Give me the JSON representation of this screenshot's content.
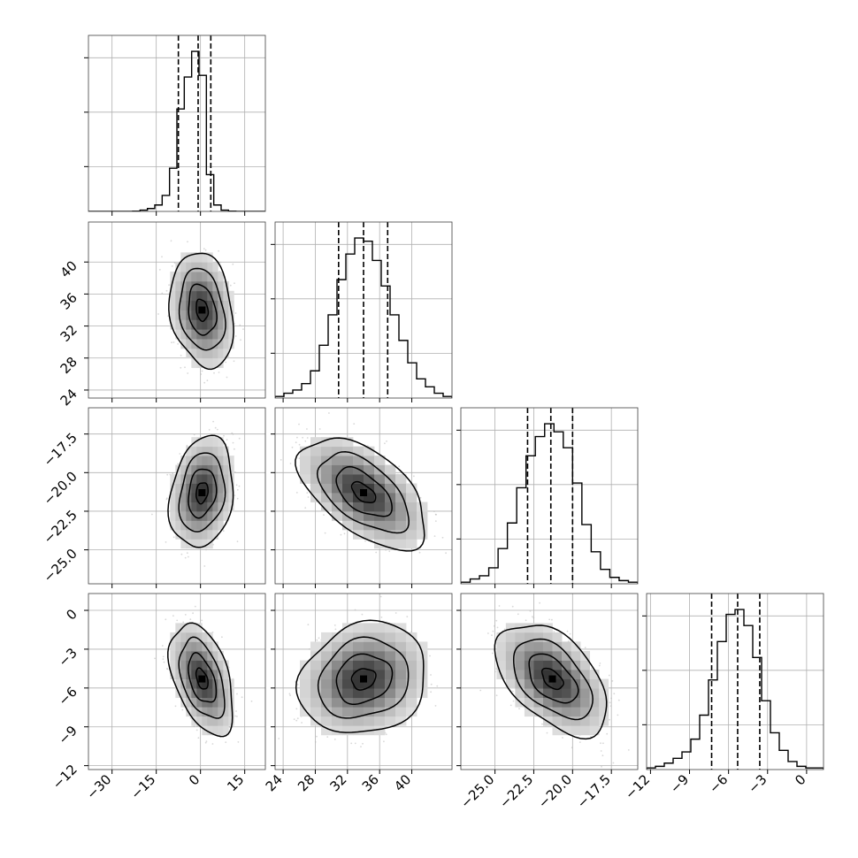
{
  "chart_data": {
    "type": "corner",
    "parameters": [
      {
        "range": [
          -38,
          22
        ],
        "ticks": [
          -30,
          -15,
          0,
          15
        ],
        "tick_labels": [
          "−30",
          "−15",
          "0",
          "15"
        ],
        "hist": [
          0,
          0,
          0,
          0,
          0,
          0,
          0.002,
          0.008,
          0.018,
          0.04,
          0.1,
          0.27,
          0.64,
          0.84,
          1.0,
          0.85,
          0.23,
          0.04,
          0.008,
          0.002,
          0,
          0,
          0,
          0
        ],
        "quantiles": [
          -7.5,
          -0.8,
          3.5
        ]
      },
      {
        "range": [
          23,
          45
        ],
        "ticks": [
          24,
          28,
          32,
          36,
          40
        ],
        "tick_labels": [
          "24",
          "28",
          "32",
          "36",
          "40"
        ],
        "hist": [
          0.01,
          0.03,
          0.05,
          0.09,
          0.17,
          0.33,
          0.52,
          0.74,
          0.9,
          1.0,
          0.98,
          0.86,
          0.7,
          0.52,
          0.36,
          0.22,
          0.12,
          0.07,
          0.03,
          0.01
        ],
        "quantiles": [
          30.9,
          34.0,
          37.0
        ]
      },
      {
        "range": [
          -27.2,
          -15.8
        ],
        "ticks": [
          -25.0,
          -22.5,
          -20.0,
          -17.5
        ],
        "tick_labels": [
          "−25.0",
          "−22.5",
          "−20.0",
          "−17.5"
        ],
        "hist": [
          0.01,
          0.03,
          0.05,
          0.1,
          0.22,
          0.38,
          0.6,
          0.8,
          0.92,
          1.0,
          0.95,
          0.85,
          0.63,
          0.37,
          0.2,
          0.09,
          0.04,
          0.02,
          0.01
        ],
        "quantiles": [
          -22.9,
          -21.4,
          -20.0
        ]
      },
      {
        "range": [
          -12.3,
          1.3
        ],
        "ticks": [
          -12,
          -9,
          -6,
          -3,
          0
        ],
        "tick_labels": [
          "−12",
          "−9",
          "−6",
          "−3",
          "0"
        ],
        "hist": [
          0.01,
          0.02,
          0.04,
          0.07,
          0.11,
          0.19,
          0.34,
          0.56,
          0.8,
          0.97,
          1.0,
          0.9,
          0.7,
          0.43,
          0.23,
          0.12,
          0.05,
          0.02,
          0.01,
          0.01
        ],
        "quantiles": [
          -7.3,
          -5.3,
          -3.6
        ]
      }
    ],
    "pairs": [
      {
        "x": 0,
        "y": 1,
        "mean": [
          0.5,
          34.0
        ],
        "sd": [
          4.5,
          3.0
        ],
        "corr": -0.2
      },
      {
        "x": 0,
        "y": 2,
        "mean": [
          0.5,
          -21.3
        ],
        "sd": [
          4.5,
          1.5
        ],
        "corr": 0.2
      },
      {
        "x": 1,
        "y": 2,
        "mean": [
          34.0,
          -21.3
        ],
        "sd": [
          3.3,
          1.5
        ],
        "corr": -0.55
      },
      {
        "x": 0,
        "y": 3,
        "mean": [
          0.5,
          -5.3
        ],
        "sd": [
          4.5,
          1.8
        ],
        "corr": -0.45
      },
      {
        "x": 1,
        "y": 3,
        "mean": [
          34.0,
          -5.3
        ],
        "sd": [
          3.3,
          1.8
        ],
        "corr": 0.15
      },
      {
        "x": 2,
        "y": 3,
        "mean": [
          -21.3,
          -5.3
        ],
        "sd": [
          1.5,
          1.8
        ],
        "corr": -0.5
      }
    ],
    "grid": true,
    "colors": {
      "line": "#000000",
      "grid": "#b0b0b0",
      "points": "#b8b8b8",
      "density_dark": "#3a3a3a",
      "density_light": "#efefef"
    }
  }
}
